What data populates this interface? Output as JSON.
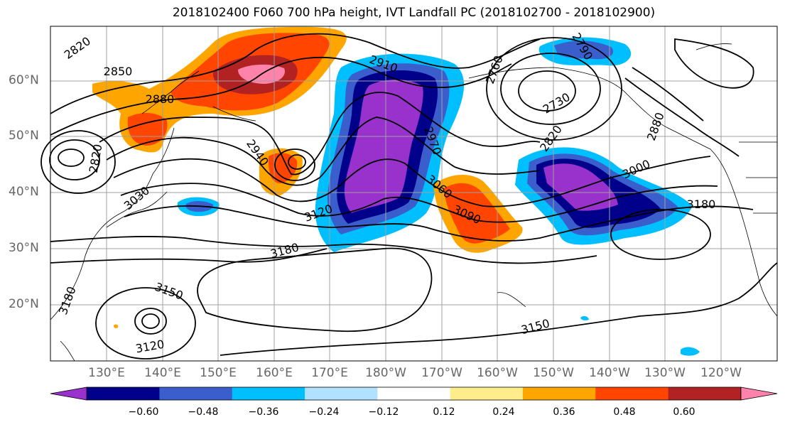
{
  "title": "2018102400 F060 700 hPa height, IVT Landfall PC (2018102700 - 2018102900)",
  "lat_labels": [
    "60°N",
    "50°N",
    "40°N",
    "30°N",
    "20°N"
  ],
  "lon_labels": [
    "130°E",
    "140°E",
    "150°E",
    "160°E",
    "170°E",
    "180°W",
    "170°W",
    "160°W",
    "150°W",
    "140°W",
    "130°W",
    "120°W"
  ],
  "colorbar": {
    "ticks": [
      "−0.60",
      "−0.48",
      "−0.36",
      "−0.24",
      "−0.12",
      "0.12",
      "0.24",
      "0.36",
      "0.48",
      "0.60"
    ],
    "colors": [
      "#9932cc",
      "#00008b",
      "#3a5fcd",
      "#00bfff",
      "#b0e2ff",
      "#ffffff",
      "#ffec8b",
      "#ffa500",
      "#ff4500",
      "#b22222",
      "#ff82ab"
    ]
  },
  "contour_labels": [
    {
      "text": "2820"
    },
    {
      "text": "2850"
    },
    {
      "text": "2880"
    },
    {
      "text": "2820"
    },
    {
      "text": "2940"
    },
    {
      "text": "2910"
    },
    {
      "text": "3030"
    },
    {
      "text": "3120"
    },
    {
      "text": "3180"
    },
    {
      "text": "3150"
    },
    {
      "text": "3120"
    },
    {
      "text": "3180"
    },
    {
      "text": "2790"
    },
    {
      "text": "2730"
    },
    {
      "text": "2760"
    },
    {
      "text": "2820"
    },
    {
      "text": "3000"
    },
    {
      "text": "2970"
    },
    {
      "text": "3060"
    },
    {
      "text": "3090"
    },
    {
      "text": "3150"
    },
    {
      "text": "3180"
    },
    {
      "text": "2880"
    }
  ]
}
